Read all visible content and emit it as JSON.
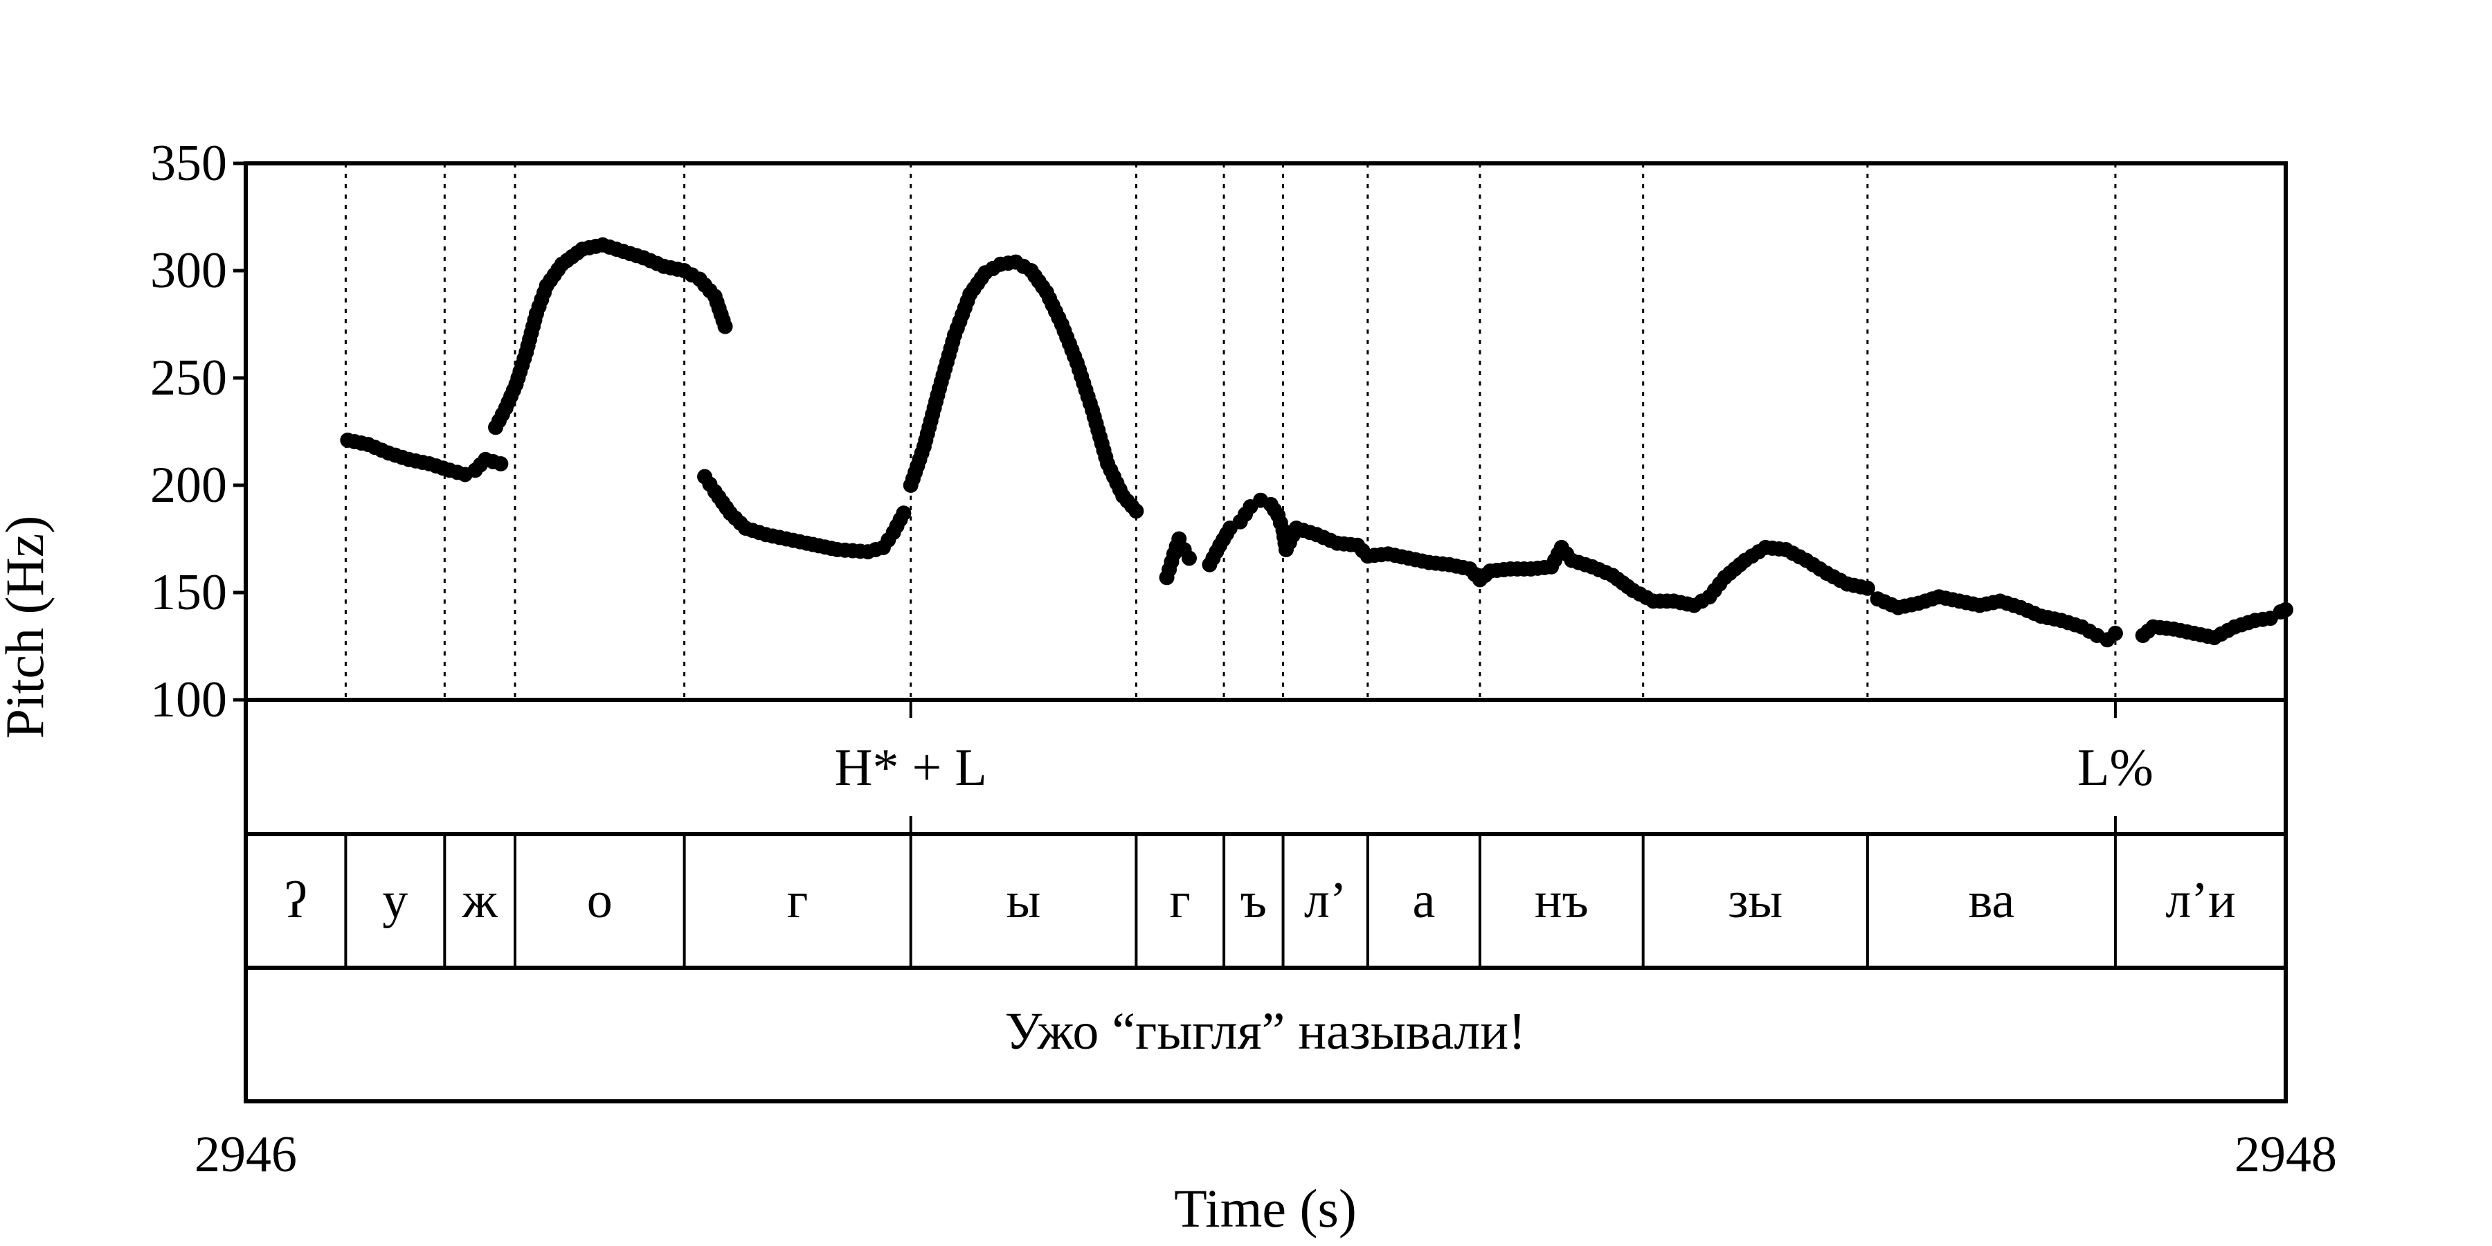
{
  "chart_data": {
    "type": "scatter",
    "ylabel": "Pitch (Hz)",
    "xlabel": "Time (s)",
    "xlim": [
      2946,
      2948
    ],
    "ylim": [
      100,
      350
    ],
    "x_ticks": [
      "2946",
      "2948"
    ],
    "y_ticks": [
      "350",
      "300",
      "250",
      "200",
      "150",
      "100"
    ],
    "boundaries": [
      2946.098,
      2946.195,
      2946.264,
      2946.43,
      2946.652,
      2946.873,
      2946.959,
      2947.017,
      2947.1,
      2947.21,
      2947.37,
      2947.59,
      2947.833
    ],
    "tones": [
      {
        "time": 2946.652,
        "label": "H* + L"
      },
      {
        "time": 2947.833,
        "label": "L%"
      }
    ],
    "segments": [
      "ʔ",
      "у",
      "ж",
      "о",
      "г",
      "ы",
      "г",
      "ъ",
      "л’",
      "а",
      "нъ",
      "зы",
      "ва",
      "л’и"
    ],
    "sentence": "Ужо “гыгля” назывaли!",
    "pitch_contours": [
      [
        [
          2946.1,
          221
        ],
        [
          2946.12,
          219
        ],
        [
          2946.14,
          215
        ],
        [
          2946.16,
          212
        ],
        [
          2946.18,
          210
        ],
        [
          2946.2,
          207
        ],
        [
          2946.215,
          205
        ],
        [
          2946.225,
          207
        ],
        [
          2946.235,
          212
        ],
        [
          2946.25,
          210
        ]
      ],
      [
        [
          2946.245,
          227
        ],
        [
          2946.255,
          236
        ],
        [
          2946.265,
          247
        ],
        [
          2946.275,
          262
        ],
        [
          2946.285,
          280
        ],
        [
          2946.295,
          293
        ],
        [
          2946.31,
          303
        ],
        [
          2946.33,
          310
        ],
        [
          2946.35,
          312
        ],
        [
          2946.37,
          309
        ],
        [
          2946.39,
          306
        ],
        [
          2946.41,
          302
        ],
        [
          2946.43,
          300
        ],
        [
          2946.445,
          296
        ],
        [
          2946.46,
          288
        ],
        [
          2946.47,
          274
        ]
      ],
      [
        [
          2946.45,
          204
        ],
        [
          2946.46,
          197
        ],
        [
          2946.475,
          187
        ],
        [
          2946.49,
          180
        ],
        [
          2946.51,
          177
        ],
        [
          2946.53,
          175
        ],
        [
          2946.55,
          173
        ],
        [
          2946.58,
          170
        ],
        [
          2946.61,
          169
        ],
        [
          2946.625,
          171
        ],
        [
          2946.635,
          178
        ],
        [
          2946.645,
          187
        ]
      ],
      [
        [
          2946.652,
          200
        ],
        [
          2946.665,
          218
        ],
        [
          2946.68,
          245
        ],
        [
          2946.695,
          270
        ],
        [
          2946.71,
          289
        ],
        [
          2946.725,
          299
        ],
        [
          2946.74,
          303
        ],
        [
          2946.755,
          304
        ],
        [
          2946.77,
          300
        ],
        [
          2946.785,
          290
        ],
        [
          2946.8,
          275
        ],
        [
          2946.815,
          257
        ],
        [
          2946.83,
          235
        ],
        [
          2946.845,
          210
        ],
        [
          2946.86,
          195
        ],
        [
          2946.873,
          188
        ]
      ],
      [
        [
          2946.903,
          157
        ],
        [
          2946.91,
          168
        ],
        [
          2946.915,
          175
        ],
        [
          2946.92,
          170
        ],
        [
          2946.925,
          166
        ]
      ],
      [
        [
          2946.945,
          163
        ],
        [
          2946.955,
          172
        ],
        [
          2946.965,
          180
        ],
        [
          2946.975,
          183
        ],
        [
          2946.985,
          190
        ],
        [
          2946.995,
          193
        ],
        [
          2947.005,
          191
        ],
        [
          2947.012,
          186
        ],
        [
          2947.017,
          179
        ],
        [
          2947.02,
          170
        ],
        [
          2947.03,
          180
        ],
        [
          2947.05,
          177
        ],
        [
          2947.07,
          173
        ],
        [
          2947.09,
          172
        ],
        [
          2947.1,
          167
        ],
        [
          2947.12,
          168
        ],
        [
          2947.14,
          166
        ],
        [
          2947.16,
          164
        ],
        [
          2947.18,
          163
        ],
        [
          2947.2,
          161
        ],
        [
          2947.21,
          156
        ],
        [
          2947.22,
          160
        ],
        [
          2947.24,
          161
        ],
        [
          2947.26,
          161
        ],
        [
          2947.28,
          162
        ],
        [
          2947.29,
          171
        ],
        [
          2947.3,
          165
        ],
        [
          2947.32,
          162
        ],
        [
          2947.34,
          158
        ],
        [
          2947.36,
          151
        ],
        [
          2947.38,
          146
        ],
        [
          2947.4,
          146
        ],
        [
          2947.42,
          144
        ],
        [
          2947.435,
          148
        ],
        [
          2947.45,
          157
        ],
        [
          2947.47,
          165
        ],
        [
          2947.49,
          171
        ],
        [
          2947.51,
          170
        ],
        [
          2947.53,
          165
        ],
        [
          2947.55,
          159
        ],
        [
          2947.57,
          154
        ],
        [
          2947.59,
          152
        ]
      ],
      [
        [
          2947.6,
          147
        ],
        [
          2947.62,
          143
        ],
        [
          2947.64,
          145
        ],
        [
          2947.66,
          148
        ],
        [
          2947.68,
          146
        ],
        [
          2947.7,
          144
        ],
        [
          2947.72,
          146
        ],
        [
          2947.74,
          143
        ],
        [
          2947.76,
          139
        ],
        [
          2947.78,
          137
        ],
        [
          2947.8,
          134
        ],
        [
          2947.815,
          130
        ],
        [
          2947.825,
          128
        ],
        [
          2947.833,
          131
        ]
      ],
      [
        [
          2947.86,
          130
        ],
        [
          2947.87,
          134
        ],
        [
          2947.89,
          133
        ],
        [
          2947.91,
          131
        ],
        [
          2947.93,
          129
        ],
        [
          2947.95,
          134
        ],
        [
          2947.97,
          137
        ],
        [
          2947.985,
          138
        ],
        [
          2947.995,
          141
        ],
        [
          2948.0,
          142
        ]
      ]
    ]
  }
}
